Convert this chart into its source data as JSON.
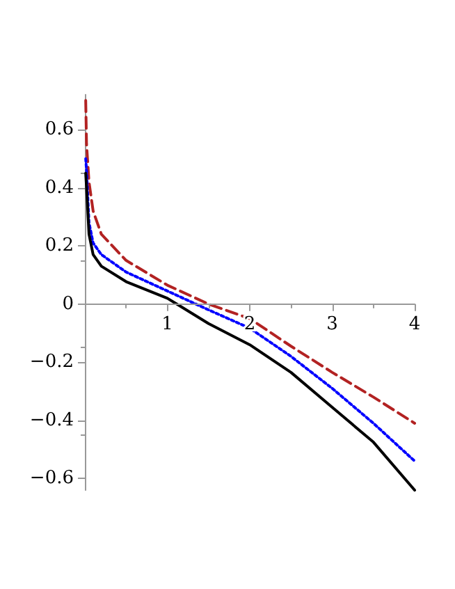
{
  "chart_data": {
    "type": "line",
    "x": [
      0.01,
      0.02,
      0.05,
      0.1,
      0.2,
      0.5,
      1,
      1.5,
      2,
      2.5,
      3,
      3.5,
      4
    ],
    "series": [
      {
        "color": "#000000",
        "line_style": "solid",
        "values": [
          0.45,
          0.4,
          0.24,
          0.17,
          0.13,
          0.077,
          0.02,
          -0.067,
          -0.14,
          -0.235,
          -0.355,
          -0.475,
          -0.64
        ]
      },
      {
        "color": "#0000ff",
        "line_style": "dotted",
        "values": [
          0.5,
          0.46,
          0.28,
          0.21,
          0.17,
          0.11,
          0.045,
          -0.02,
          -0.083,
          -0.18,
          -0.29,
          -0.41,
          -0.54
        ]
      },
      {
        "color": "#b22222",
        "line_style": "dashed",
        "values": [
          0.7,
          0.55,
          0.42,
          0.32,
          0.24,
          0.15,
          0.065,
          0,
          -0.05,
          -0.145,
          -0.235,
          -0.32,
          -0.41
        ]
      }
    ],
    "xlim": [
      0,
      4
    ],
    "xticks": [
      1,
      2,
      3,
      4
    ],
    "ylim": [
      -0.64,
      0.72
    ],
    "yticks": [
      -0.6,
      -0.4,
      -0.2,
      0,
      0.2,
      0.4,
      0.6
    ],
    "marker": "none",
    "grid": false
  }
}
